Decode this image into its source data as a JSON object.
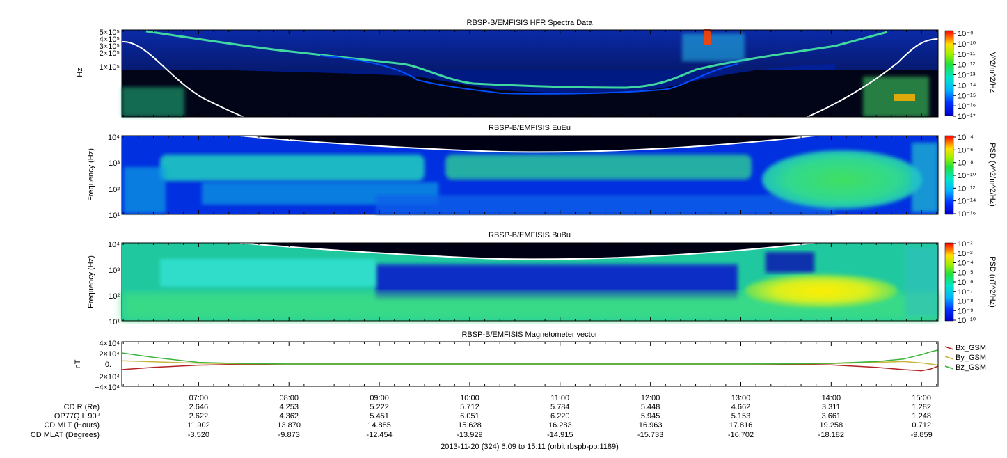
{
  "time_ticks": [
    "07:00",
    "08:00",
    "09:00",
    "10:00",
    "11:00",
    "12:00",
    "13:00",
    "14:00",
    "15:00"
  ],
  "chart_data": [
    {
      "type": "heatmap",
      "title": "RBSP-B/EMFISIS  HFR Spectra Data",
      "ylabel": "Hz",
      "ytick_labels": [
        "5×10⁵",
        "4×10⁵",
        "3×10⁵",
        "2×10⁵",
        "1×10⁵"
      ],
      "colorbar_label": "V^2/m^2/Hz",
      "colorbar_ticks": [
        "10⁻⁹",
        "10⁻¹⁰",
        "10⁻¹¹",
        "10⁻¹²",
        "10⁻¹³",
        "10⁻¹⁴",
        "10⁻¹⁵",
        "10⁻¹⁶",
        "10⁻¹⁷"
      ]
    },
    {
      "type": "heatmap",
      "title": "RBSP-B/EMFISIS  EuEu",
      "ylabel": "Frequency (Hz)",
      "ytick_labels": [
        "10⁴",
        "10³",
        "10²",
        "10¹"
      ],
      "colorbar_label": "PSD (V^2/m^2/Hz)",
      "colorbar_ticks": [
        "10⁻⁴",
        "10⁻⁶",
        "10⁻⁸",
        "10⁻¹⁰",
        "10⁻¹²",
        "10⁻¹⁴",
        "10⁻¹⁶"
      ]
    },
    {
      "type": "heatmap",
      "title": "RBSP-B/EMFISIS  BuBu",
      "ylabel": "Frequency (Hz)",
      "ytick_labels": [
        "10⁴",
        "10³",
        "10²",
        "10¹"
      ],
      "colorbar_label": "PSD (nT^2/Hz)",
      "colorbar_ticks": [
        "10⁻²",
        "10⁻³",
        "10⁻⁴",
        "10⁻⁵",
        "10⁻⁶",
        "10⁻⁷",
        "10⁻⁸",
        "10⁻⁹",
        "10⁻¹⁰"
      ]
    },
    {
      "type": "line",
      "title": "RBSP-B/EMFISIS  Magnetometer vector",
      "ylabel": "nT",
      "ytick_labels": [
        "4×10⁴",
        "2×10⁴",
        "0.",
        "−2×10⁴",
        "−4×10⁴"
      ],
      "ylim": [
        -40000,
        40000
      ],
      "x_hours": [
        6.15,
        6.5,
        7,
        7.5,
        8,
        9,
        10,
        11,
        12,
        13,
        13.5,
        14,
        14.5,
        14.8,
        15,
        15.1,
        15.18
      ],
      "series": [
        {
          "name": "Bx_GSM",
          "color": "#b22222",
          "values": [
            -10000,
            -6000,
            -2000,
            -500,
            0,
            0,
            0,
            0,
            0,
            0,
            -300,
            -1500,
            -6000,
            -10000,
            -12000,
            -9000,
            -4000
          ]
        },
        {
          "name": "By_GSM",
          "color": "#c8b43c",
          "values": [
            6000,
            4000,
            1500,
            500,
            0,
            0,
            0,
            0,
            0,
            0,
            300,
            1000,
            3000,
            4500,
            2000,
            0,
            -2000
          ]
        },
        {
          "name": "Bz_GSM",
          "color": "#3cb43c",
          "values": [
            20000,
            12000,
            3000,
            800,
            0,
            0,
            0,
            0,
            0,
            0,
            300,
            1200,
            4500,
            9000,
            17000,
            22000,
            25000
          ]
        }
      ]
    }
  ],
  "ephemeris": {
    "labels": [
      "CD R (Re)",
      "OP77Q L 90⁰",
      "CD MLT (Hours)",
      "CD MLAT (Degrees)"
    ],
    "rows": [
      [
        "2.646",
        "4.253",
        "5.222",
        "5.712",
        "5.784",
        "5.448",
        "4.662",
        "3.311",
        "1.282"
      ],
      [
        "2.622",
        "4.362",
        "5.451",
        "6.051",
        "6.220",
        "5.945",
        "5.153",
        "3.661",
        "1.248"
      ],
      [
        "11.902",
        "13.870",
        "14.885",
        "15.628",
        "16.283",
        "16.963",
        "17.816",
        "19.258",
        "0.712"
      ],
      [
        "-3.520",
        "-9.873",
        "-12.454",
        "-13.929",
        "-14.915",
        "-15.733",
        "-16.702",
        "-18.182",
        "-9.859"
      ]
    ]
  },
  "footer": "2013-11-20 (324) 6:09 to 15:11 (orbit:rbspb-pp:1189)"
}
